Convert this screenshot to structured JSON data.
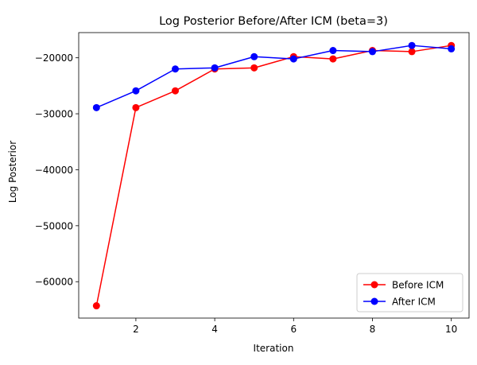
{
  "chart_data": {
    "type": "line",
    "title": "Log Posterior Before/After ICM (beta=3)",
    "xlabel": "Iteration",
    "ylabel": "Log Posterior",
    "xlim": [
      0.55,
      10.45
    ],
    "ylim": [
      -66500,
      -15500
    ],
    "xticks": [
      2,
      4,
      6,
      8,
      10
    ],
    "yticks": [
      -60000,
      -50000,
      -40000,
      -30000,
      -20000
    ],
    "ytick_labels": [
      "−60000",
      "−50000",
      "−40000",
      "−30000",
      "−20000"
    ],
    "grid": false,
    "legend_position": "lower-right",
    "x": [
      1,
      2,
      3,
      4,
      5,
      6,
      7,
      8,
      9,
      10
    ],
    "series": [
      {
        "name": "Before ICM",
        "color": "#ff0000",
        "marker": "circle",
        "values": [
          -64300,
          -28900,
          -25900,
          -22000,
          -21800,
          -19800,
          -20200,
          -18700,
          -18900,
          -17800
        ]
      },
      {
        "name": "After ICM",
        "color": "#0000ff",
        "marker": "circle",
        "values": [
          -28900,
          -25900,
          -22000,
          -21800,
          -19800,
          -20200,
          -18700,
          -18900,
          -17800,
          -18400
        ]
      }
    ]
  }
}
